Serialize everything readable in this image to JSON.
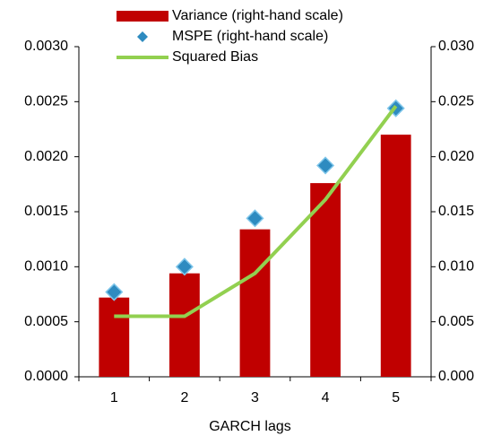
{
  "chart_data": {
    "type": "bar_line",
    "x_label": "GARCH lags",
    "categories": [
      "1",
      "2",
      "3",
      "4",
      "5"
    ],
    "series": [
      {
        "name": "Variance (right-hand scale)",
        "kind": "bar",
        "axis": "y2",
        "color": "#c00000",
        "values": [
          0.0072,
          0.0094,
          0.0134,
          0.0176,
          0.022
        ]
      },
      {
        "name": "MSPE (right-hand scale)",
        "kind": "scatter",
        "axis": "y2",
        "color": "#2e8bc0",
        "values": [
          0.0077,
          0.01,
          0.0144,
          0.0192,
          0.0244
        ]
      },
      {
        "name": "Squared Bias",
        "kind": "line",
        "axis": "y",
        "color": "#92d050",
        "values": [
          0.00055,
          0.00055,
          0.00094,
          0.00161,
          0.00246
        ]
      }
    ],
    "ylim": [
      0,
      0.003
    ],
    "yticks": [
      {
        "value": 0,
        "label": "0.0000"
      },
      {
        "value": 0.0005,
        "label": "0.0005"
      },
      {
        "value": 0.001,
        "label": "0.0010"
      },
      {
        "value": 0.0015,
        "label": "0.0015"
      },
      {
        "value": 0.002,
        "label": "0.0020"
      },
      {
        "value": 0.0025,
        "label": "0.0025"
      },
      {
        "value": 0.003,
        "label": "0.0030"
      }
    ],
    "y2lim": [
      0,
      0.03
    ],
    "y2ticks": [
      {
        "value": 0,
        "label": "0.000"
      },
      {
        "value": 0.005,
        "label": "0.005"
      },
      {
        "value": 0.01,
        "label": "0.010"
      },
      {
        "value": 0.015,
        "label": "0.015"
      },
      {
        "value": 0.02,
        "label": "0.020"
      },
      {
        "value": 0.025,
        "label": "0.025"
      },
      {
        "value": 0.03,
        "label": "0.030"
      }
    ]
  }
}
